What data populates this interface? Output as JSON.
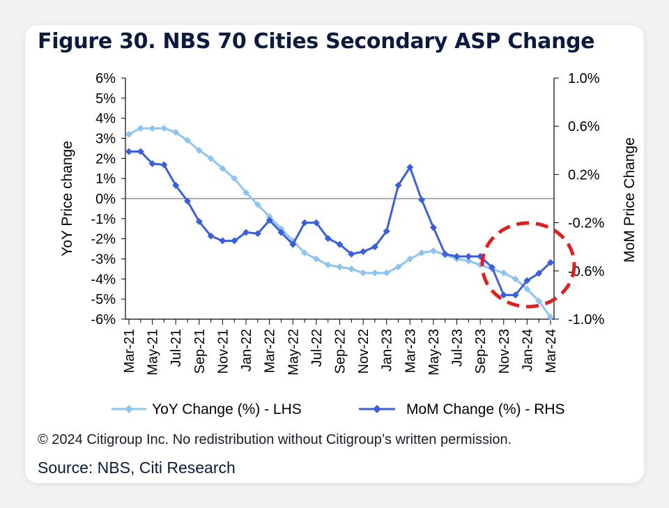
{
  "title": "Figure 30. NBS 70 Cities Secondary ASP Change",
  "copyright": "© 2024 Citigroup Inc. No redistribution without Citigroup’s written permission.",
  "source": "Source: NBS, Citi Research",
  "colors": {
    "yoy": "#8ec5f0",
    "mom": "#3a5fd9",
    "highlight": "#e02020"
  },
  "chart_data": {
    "type": "line",
    "title": "Figure 30. NBS 70 Cities Secondary ASP Change",
    "ylabel": "YoY Price change",
    "y2label": "MoM Price Change",
    "xlabel": "",
    "ylim": [
      -6,
      6
    ],
    "y2lim": [
      -1.0,
      1.0
    ],
    "yticks": [
      "6%",
      "5%",
      "4%",
      "3%",
      "2%",
      "1%",
      "0%",
      "-1%",
      "-2%",
      "-3%",
      "-4%",
      "-5%",
      "-6%"
    ],
    "y2ticks": [
      "1.0%",
      "0.6%",
      "0.2%",
      "-0.2%",
      "-0.6%",
      "-1.0%"
    ],
    "xtick_labels": [
      "Mar-21",
      "May-21",
      "Jul-21",
      "Sep-21",
      "Nov-21",
      "Jan-22",
      "Mar-22",
      "May-22",
      "Jul-22",
      "Sep-22",
      "Nov-22",
      "Jan-23",
      "Mar-23",
      "May-23",
      "Jul-23",
      "Sep-23",
      "Nov-23",
      "Jan-24",
      "Mar-24"
    ],
    "x": [
      "Mar-21",
      "Apr-21",
      "May-21",
      "Jun-21",
      "Jul-21",
      "Aug-21",
      "Sep-21",
      "Oct-21",
      "Nov-21",
      "Dec-21",
      "Jan-22",
      "Feb-22",
      "Mar-22",
      "Apr-22",
      "May-22",
      "Jun-22",
      "Jul-22",
      "Aug-22",
      "Sep-22",
      "Oct-22",
      "Nov-22",
      "Dec-22",
      "Jan-23",
      "Feb-23",
      "Mar-23",
      "Apr-23",
      "May-23",
      "Jun-23",
      "Jul-23",
      "Aug-23",
      "Sep-23",
      "Oct-23",
      "Nov-23",
      "Dec-23",
      "Jan-24",
      "Feb-24",
      "Mar-24"
    ],
    "series": [
      {
        "name": "YoY Change (%) - LHS",
        "axis": "left",
        "values": [
          3.2,
          3.5,
          3.5,
          3.5,
          3.3,
          2.9,
          2.4,
          2.0,
          1.5,
          1.0,
          0.3,
          -0.3,
          -0.9,
          -1.5,
          -2.1,
          -2.7,
          -3.0,
          -3.3,
          -3.4,
          -3.5,
          -3.7,
          -3.7,
          -3.7,
          -3.4,
          -3.0,
          -2.7,
          -2.6,
          -2.8,
          -3.0,
          -3.1,
          -3.3,
          -3.5,
          -3.7,
          -4.0,
          -4.5,
          -5.1,
          -5.9
        ]
      },
      {
        "name": "MoM Change (%) - RHS",
        "axis": "right",
        "values": [
          0.39,
          0.39,
          0.29,
          0.28,
          0.11,
          -0.02,
          -0.19,
          -0.31,
          -0.35,
          -0.35,
          -0.28,
          -0.29,
          -0.18,
          -0.28,
          -0.38,
          -0.2,
          -0.2,
          -0.33,
          -0.38,
          -0.46,
          -0.44,
          -0.4,
          -0.27,
          0.11,
          0.26,
          -0.01,
          -0.24,
          -0.46,
          -0.48,
          -0.48,
          -0.48,
          -0.57,
          -0.8,
          -0.8,
          -0.68,
          -0.62,
          -0.53
        ]
      }
    ],
    "legend": [
      "YoY Change (%) - LHS",
      "MoM Change (%) - RHS"
    ],
    "legend_position": "bottom",
    "grid": false
  }
}
